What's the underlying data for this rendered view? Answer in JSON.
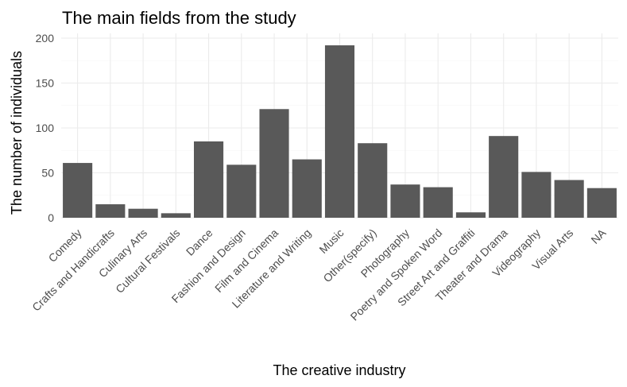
{
  "chart_data": {
    "type": "bar",
    "title": "The main fields from the study",
    "xlabel": "The creative industry",
    "ylabel": "The number of individuals",
    "categories": [
      "Comedy",
      "Crafts and Handicrafts",
      "Culinary Arts",
      "Cultural Festivals",
      "Dance",
      "Fashion and Design",
      "Film and Cinema",
      "Literature and Writing",
      "Music",
      "Other(specify)",
      "Photography",
      "Poetry and Spoken Word",
      "Street Art and Graffiti",
      "Theater and Drama",
      "Videography",
      "Visual Arts",
      "NA"
    ],
    "values": [
      61,
      15,
      10,
      5,
      85,
      59,
      121,
      65,
      192,
      83,
      37,
      34,
      6,
      91,
      51,
      42,
      33
    ],
    "ylim": [
      0,
      200
    ],
    "yticks": [
      0,
      50,
      100,
      150,
      200
    ],
    "grid": true,
    "bar_color": "#595959"
  }
}
